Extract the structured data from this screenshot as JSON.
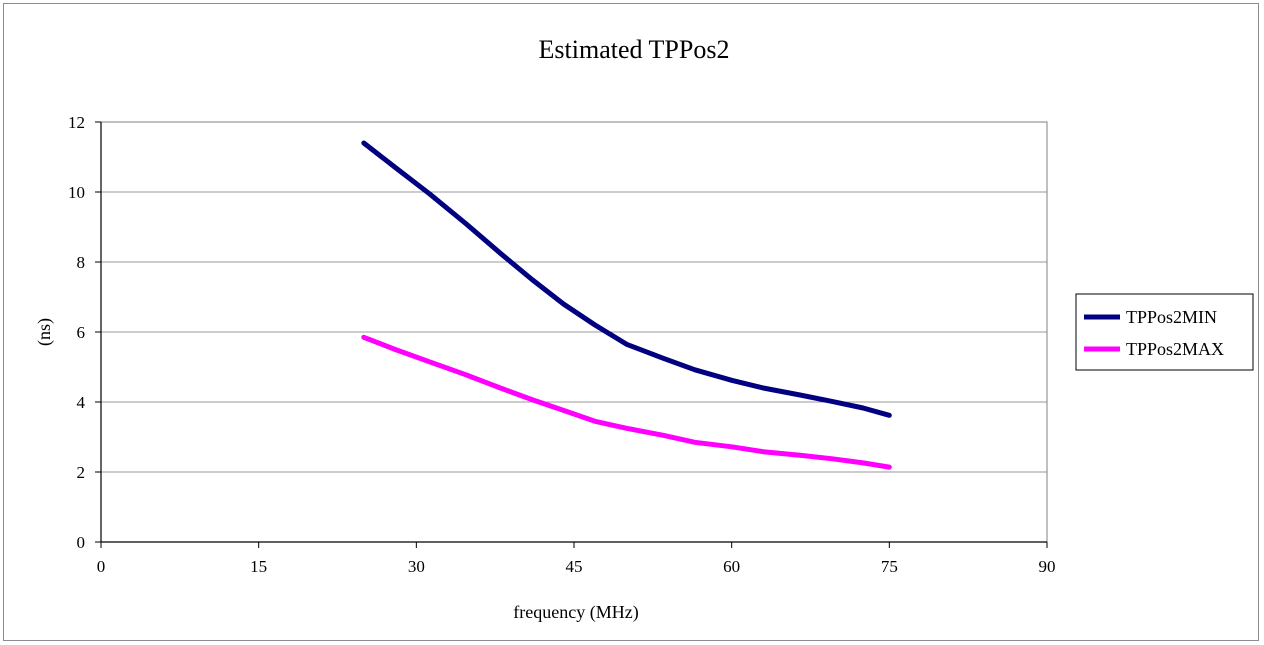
{
  "chart_data": {
    "type": "line",
    "title": "Estimated TPPos2",
    "xlabel": "frequency (MHz)",
    "ylabel": "(ns)",
    "xlim": [
      0,
      90
    ],
    "ylim": [
      0,
      12
    ],
    "xticks": [
      0,
      15,
      30,
      45,
      60,
      75,
      90
    ],
    "yticks": [
      0,
      2,
      4,
      6,
      8,
      10,
      12
    ],
    "grid": "horizontal",
    "legend_position": "right",
    "series": [
      {
        "name": "TPPos2MIN",
        "color": "#000080",
        "x": [
          25,
          28,
          31.25,
          34.7,
          38,
          41,
          44,
          47,
          50,
          53.5,
          56.5,
          60,
          63,
          66.5,
          69.5,
          72.5,
          75
        ],
        "y": [
          11.4,
          10.7,
          9.95,
          9.1,
          8.25,
          7.5,
          6.8,
          6.2,
          5.65,
          5.25,
          4.92,
          4.62,
          4.4,
          4.2,
          4.02,
          3.83,
          3.62
        ]
      },
      {
        "name": "TPPos2MAX",
        "color": "#ff00ff",
        "x": [
          25,
          28,
          31.25,
          34.7,
          38,
          41,
          44,
          47,
          50,
          53.5,
          56.5,
          60,
          63,
          66.5,
          69.5,
          72.5,
          75
        ],
        "y": [
          5.85,
          5.5,
          5.15,
          4.78,
          4.4,
          4.07,
          3.76,
          3.45,
          3.25,
          3.05,
          2.85,
          2.72,
          2.58,
          2.48,
          2.38,
          2.26,
          2.14
        ]
      }
    ]
  }
}
